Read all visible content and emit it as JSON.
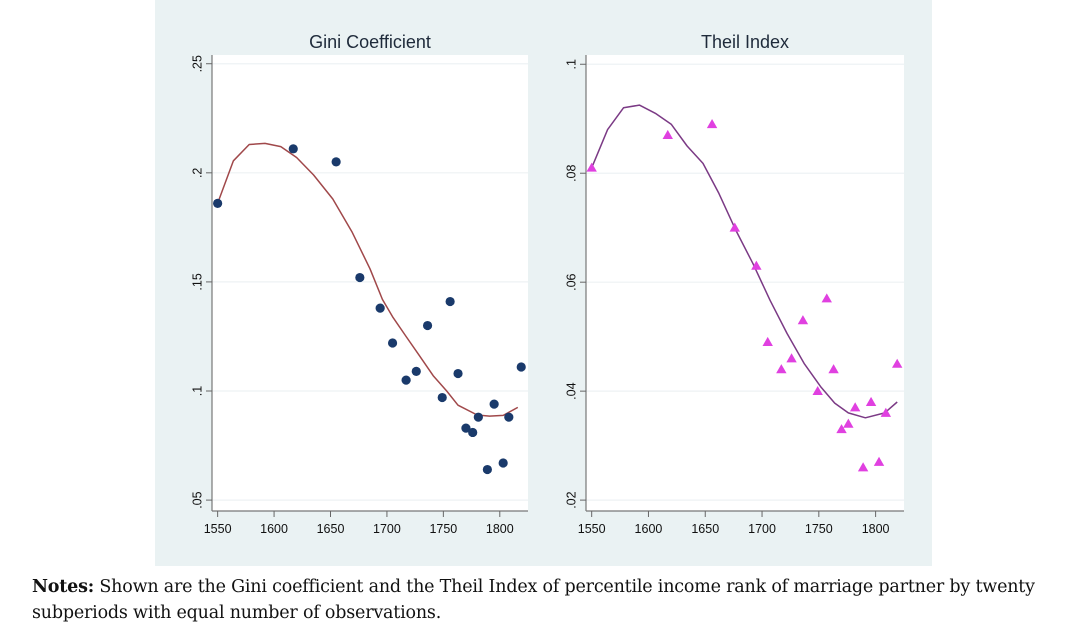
{
  "chart_data": [
    {
      "type": "scatter",
      "title": "Gini Coefficient",
      "xlabel": "",
      "ylabel": "",
      "xlim": [
        1545,
        1825
      ],
      "ylim": [
        0.045,
        0.254
      ],
      "xticks": [
        1550,
        1600,
        1650,
        1700,
        1750,
        1800
      ],
      "xtick_labels": [
        "1550",
        "1600",
        "1650",
        "1700",
        "1750",
        "1800"
      ],
      "yticks": [
        0.05,
        0.1,
        0.15,
        0.2,
        0.25
      ],
      "ytick_labels": [
        ".05",
        ".1",
        ".15",
        ".2",
        ".25"
      ],
      "grid": true,
      "legend": "none",
      "series": [
        {
          "name": "Gini coefficient (subperiods)",
          "kind": "points",
          "marker": "circle",
          "color": "#1a3a6b",
          "x": [
            1550,
            1617,
            1655,
            1676,
            1694,
            1705,
            1717,
            1726,
            1736,
            1749,
            1756,
            1763,
            1770,
            1776,
            1781,
            1789,
            1795,
            1803,
            1808,
            1819
          ],
          "y": [
            0.186,
            0.211,
            0.205,
            0.152,
            0.138,
            0.122,
            0.105,
            0.109,
            0.13,
            0.097,
            0.141,
            0.108,
            0.083,
            0.081,
            0.088,
            0.064,
            0.094,
            0.067,
            0.088,
            0.111
          ]
        },
        {
          "name": "Gini fitted curve",
          "kind": "line",
          "color": "#a0484a",
          "x": [
            1550,
            1564,
            1578,
            1592,
            1606,
            1620,
            1635,
            1652,
            1669,
            1685,
            1696,
            1705,
            1717,
            1729,
            1741,
            1753,
            1763,
            1780,
            1791,
            1803,
            1816
          ],
          "y": [
            0.186,
            0.2055,
            0.213,
            0.2135,
            0.212,
            0.207,
            0.199,
            0.188,
            0.173,
            0.156,
            0.142,
            0.134,
            0.125,
            0.116,
            0.107,
            0.1,
            0.0935,
            0.089,
            0.0885,
            0.0888,
            0.0925
          ]
        }
      ]
    },
    {
      "type": "scatter",
      "title": "Theil Index",
      "xlabel": "",
      "ylabel": "",
      "xlim": [
        1545,
        1825
      ],
      "ylim": [
        0.018,
        0.1017
      ],
      "xticks": [
        1550,
        1600,
        1650,
        1700,
        1750,
        1800
      ],
      "xtick_labels": [
        "1550",
        "1600",
        "1650",
        "1700",
        "1750",
        "1800"
      ],
      "yticks": [
        0.02,
        0.04,
        0.06,
        0.08,
        0.1
      ],
      "ytick_labels": [
        ".02",
        ".04",
        ".06",
        ".08",
        ".1"
      ],
      "grid": true,
      "legend": "none",
      "series": [
        {
          "name": "Theil index (subperiods)",
          "kind": "points",
          "marker": "triangle",
          "color": "#e040e0",
          "x": [
            1550,
            1617,
            1656,
            1676,
            1695,
            1705,
            1717,
            1726,
            1736,
            1749,
            1757,
            1763,
            1770,
            1776,
            1782,
            1789,
            1796,
            1803,
            1809,
            1819
          ],
          "y": [
            0.081,
            0.087,
            0.089,
            0.07,
            0.063,
            0.049,
            0.044,
            0.046,
            0.053,
            0.04,
            0.057,
            0.044,
            0.033,
            0.034,
            0.037,
            0.026,
            0.038,
            0.027,
            0.036,
            0.045
          ]
        },
        {
          "name": "Theil fitted curve",
          "kind": "line",
          "color": "#7b3a85",
          "x": [
            1550,
            1564,
            1578,
            1592,
            1606,
            1620,
            1634,
            1648,
            1662,
            1677,
            1692,
            1707,
            1722,
            1737,
            1752,
            1764,
            1776,
            1791,
            1808,
            1819
          ],
          "y": [
            0.081,
            0.088,
            0.092,
            0.0925,
            0.091,
            0.089,
            0.085,
            0.0818,
            0.0763,
            0.0695,
            0.0634,
            0.0567,
            0.0506,
            0.0451,
            0.0407,
            0.0378,
            0.036,
            0.0351,
            0.036,
            0.038
          ]
        }
      ]
    }
  ],
  "notes": {
    "label": "Notes:",
    "text": "Shown are the Gini coefficient and the Theil Index of percentile income rank of marriage partner by twenty subperiods with equal number of observations."
  }
}
